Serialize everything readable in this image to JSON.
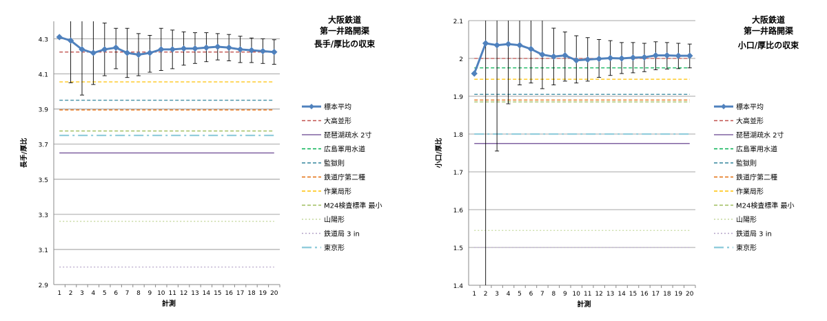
{
  "chart_data": [
    {
      "type": "line",
      "title": [
        "大阪鉄道",
        "第一井路開渠",
        "長手/厚比の収束"
      ],
      "xlabel": "計測",
      "ylabel": "長手/厚比",
      "ylim": [
        2.9,
        4.4
      ],
      "yticks": [
        "2.9",
        "3.1",
        "3.3",
        "3.5",
        "3.7",
        "3.9",
        "4.1",
        "4.3"
      ],
      "yticks_values": [
        2.9,
        3.1,
        3.3,
        3.5,
        3.7,
        3.9,
        4.1,
        4.3
      ],
      "x": [
        1,
        2,
        3,
        4,
        5,
        6,
        7,
        8,
        9,
        10,
        11,
        12,
        13,
        14,
        15,
        16,
        17,
        18,
        19,
        20
      ],
      "xticks": [
        "1",
        "2",
        "3",
        "4",
        "5",
        "6",
        "7",
        "8",
        "9",
        "10",
        "11",
        "12",
        "13",
        "14",
        "15",
        "16",
        "17",
        "18",
        "19",
        "20"
      ],
      "grid": true,
      "legend_position": "right",
      "mean_series": {
        "name": "標本平均",
        "color": "#4f81bd",
        "values": [
          4.31,
          4.29,
          4.24,
          4.22,
          4.24,
          4.25,
          4.22,
          4.21,
          4.22,
          4.24,
          4.24,
          4.245,
          4.245,
          4.25,
          4.255,
          4.25,
          4.24,
          4.235,
          4.23,
          4.225
        ],
        "err_high": [
          4.31,
          4.4,
          4.4,
          4.4,
          4.39,
          4.36,
          4.36,
          4.33,
          4.32,
          4.36,
          4.35,
          4.34,
          4.335,
          4.335,
          4.33,
          4.325,
          4.315,
          4.305,
          4.3,
          4.295
        ],
        "err_low": [
          4.31,
          4.05,
          3.98,
          4.04,
          4.09,
          4.13,
          4.08,
          4.09,
          4.11,
          4.12,
          4.13,
          4.15,
          4.16,
          4.17,
          4.18,
          4.175,
          4.165,
          4.165,
          4.16,
          4.155
        ]
      },
      "reference_lines": [
        {
          "name": "大高並形",
          "value": 4.225,
          "color": "#c0504d",
          "style": "dash"
        },
        {
          "name": "琵琶湖疏水 2寸",
          "value": 3.65,
          "color": "#7f60a0",
          "style": "solid"
        },
        {
          "name": "広島軍用水道",
          "value": null,
          "color": "#00b050",
          "style": "dash"
        },
        {
          "name": "監獄則",
          "value": 3.95,
          "color": "#31849b",
          "style": "dash"
        },
        {
          "name": "鉄道庁第二種",
          "value": 3.895,
          "color": "#e46c0a",
          "style": "dash"
        },
        {
          "name": "作業局形",
          "value": 4.055,
          "color": "#ffc000",
          "style": "dash"
        },
        {
          "name": "M24検査標準 最小",
          "value": 3.775,
          "color": "#9bbb59",
          "style": "dash"
        },
        {
          "name": "山陽形",
          "value": 3.26,
          "color": "#c4d79b",
          "style": "dot"
        },
        {
          "name": "鉄道局 3 in",
          "value": 3.0,
          "color": "#b3a2c7",
          "style": "dot"
        },
        {
          "name": "東京形",
          "value": 3.75,
          "color": "#92cddc",
          "style": "dashdot"
        }
      ]
    },
    {
      "type": "line",
      "title": [
        "大阪鉄道",
        "第一井路開渠",
        "小口/厚比の収束"
      ],
      "xlabel": "計測",
      "ylabel": "小口/厚比",
      "ylim": [
        1.4,
        2.1
      ],
      "yticks": [
        "1.4",
        "1.5",
        "1.6",
        "1.7",
        "1.8",
        "1.9",
        "2",
        "2.1"
      ],
      "yticks_values": [
        1.4,
        1.5,
        1.6,
        1.7,
        1.8,
        1.9,
        2.0,
        2.1
      ],
      "x": [
        1,
        2,
        3,
        4,
        5,
        6,
        7,
        8,
        9,
        10,
        11,
        12,
        13,
        14,
        15,
        16,
        17,
        18,
        19,
        20
      ],
      "xticks": [
        "1",
        "2",
        "3",
        "4",
        "5",
        "6",
        "7",
        "8",
        "9",
        "10",
        "11",
        "12",
        "13",
        "14",
        "15",
        "16",
        "17",
        "18",
        "19",
        "20"
      ],
      "grid": true,
      "legend_position": "right",
      "mean_series": {
        "name": "標本平均",
        "color": "#4f81bd",
        "values": [
          1.96,
          2.04,
          2.035,
          2.038,
          2.035,
          2.025,
          2.01,
          2.005,
          2.008,
          1.995,
          1.997,
          1.999,
          2.001,
          2.0,
          2.002,
          2.003,
          2.008,
          2.008,
          2.007,
          2.007
        ],
        "err_high": [
          1.96,
          2.1,
          2.1,
          2.1,
          2.1,
          2.1,
          2.1,
          2.08,
          2.07,
          2.06,
          2.055,
          2.05,
          2.047,
          2.042,
          2.042,
          2.04,
          2.044,
          2.042,
          2.04,
          2.038
        ],
        "err_low": [
          1.96,
          1.4,
          1.755,
          1.88,
          1.93,
          1.935,
          1.92,
          1.93,
          1.94,
          1.935,
          1.94,
          1.95,
          1.955,
          1.96,
          1.962,
          1.965,
          1.97,
          1.972,
          1.973,
          1.975
        ]
      },
      "reference_lines": [
        {
          "name": "大高並形",
          "value": 2.0,
          "color": "#c0504d",
          "style": "dash"
        },
        {
          "name": "琵琶湖疏水 2寸",
          "value": 1.775,
          "color": "#7f60a0",
          "style": "solid"
        },
        {
          "name": "広島軍用水道",
          "value": 1.975,
          "color": "#00b050",
          "style": "dash"
        },
        {
          "name": "監獄則",
          "value": 1.905,
          "color": "#31849b",
          "style": "dash"
        },
        {
          "name": "鉄道庁第二種",
          "value": 1.89,
          "color": "#e46c0a",
          "style": "dash"
        },
        {
          "name": "作業局形",
          "value": 1.945,
          "color": "#ffc000",
          "style": "dash"
        },
        {
          "name": "M24検査標準 最小",
          "value": 1.885,
          "color": "#9bbb59",
          "style": "dash"
        },
        {
          "name": "山陽形",
          "value": 1.545,
          "color": "#c4d79b",
          "style": "dot"
        },
        {
          "name": "鉄道局 3 in",
          "value": 1.5,
          "color": "#b3a2c7",
          "style": "dot"
        },
        {
          "name": "東京形",
          "value": 1.8,
          "color": "#92cddc",
          "style": "dashdot"
        }
      ]
    }
  ]
}
